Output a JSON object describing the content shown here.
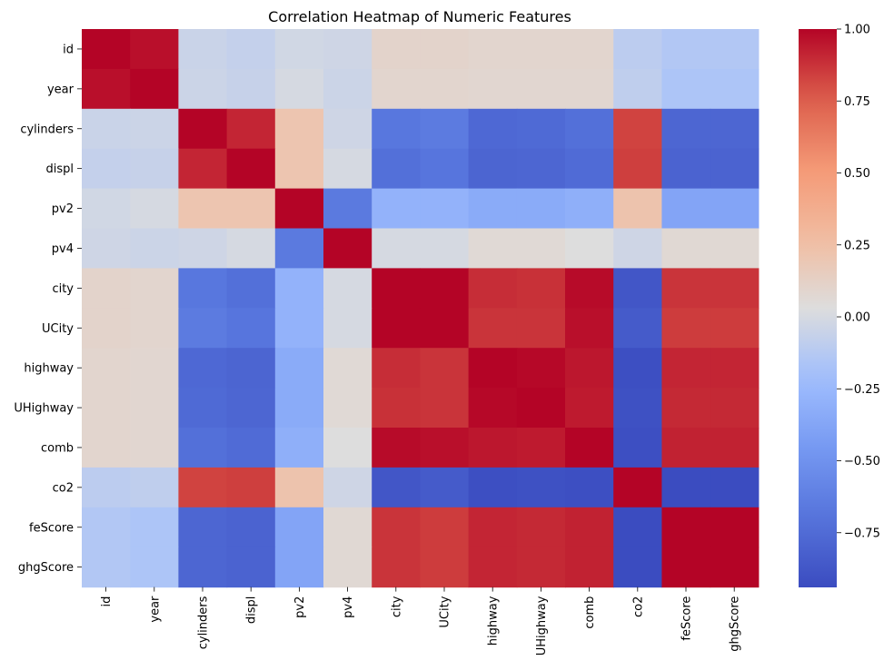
{
  "chart_data": {
    "type": "heatmap",
    "title": "Correlation Heatmap of Numeric Features",
    "xlabel": "",
    "ylabel": "",
    "labels": [
      "id",
      "year",
      "cylinders",
      "displ",
      "pv2",
      "pv4",
      "city",
      "UCity",
      "highway",
      "UHighway",
      "comb",
      "co2",
      "feScore",
      "ghgScore"
    ],
    "colormap": "coolwarm",
    "vmin": -0.94,
    "vmax": 1.0,
    "colorbar_ticks": [
      -0.75,
      -0.5,
      -0.25,
      0.0,
      0.25,
      0.5,
      0.75,
      1.0
    ],
    "colorbar_tick_labels": [
      "−0.75",
      "−0.50",
      "−0.25",
      "0.00",
      "0.25",
      "0.50",
      "0.75",
      "1.00"
    ],
    "matrix": [
      [
        1.0,
        0.97,
        -0.05,
        -0.07,
        -0.02,
        -0.03,
        0.1,
        0.1,
        0.09,
        0.09,
        0.09,
        -0.1,
        -0.14,
        -0.14
      ],
      [
        0.97,
        1.0,
        -0.04,
        -0.06,
        0.0,
        -0.04,
        0.09,
        0.09,
        0.08,
        0.08,
        0.08,
        -0.09,
        -0.16,
        -0.16
      ],
      [
        -0.05,
        -0.04,
        1.0,
        0.91,
        0.21,
        -0.03,
        -0.68,
        -0.65,
        -0.77,
        -0.76,
        -0.72,
        0.83,
        -0.78,
        -0.78
      ],
      [
        -0.07,
        -0.06,
        0.91,
        1.0,
        0.21,
        0.0,
        -0.72,
        -0.69,
        -0.79,
        -0.78,
        -0.75,
        0.84,
        -0.8,
        -0.8
      ],
      [
        -0.02,
        0.0,
        0.21,
        0.21,
        1.0,
        -0.66,
        -0.29,
        -0.29,
        -0.34,
        -0.34,
        -0.31,
        0.22,
        -0.38,
        -0.38
      ],
      [
        -0.03,
        -0.04,
        -0.03,
        0.0,
        -0.66,
        1.0,
        0.0,
        0.0,
        0.06,
        0.06,
        0.03,
        -0.03,
        0.07,
        0.07
      ],
      [
        0.1,
        0.09,
        -0.68,
        -0.72,
        -0.29,
        0.0,
        1.0,
        1.0,
        0.89,
        0.88,
        0.98,
        -0.88,
        0.87,
        0.87
      ],
      [
        0.1,
        0.09,
        -0.65,
        -0.69,
        -0.29,
        0.0,
        1.0,
        1.0,
        0.87,
        0.87,
        0.97,
        -0.85,
        0.85,
        0.85
      ],
      [
        0.09,
        0.08,
        -0.77,
        -0.79,
        -0.34,
        0.06,
        0.89,
        0.87,
        1.0,
        0.99,
        0.95,
        -0.92,
        0.91,
        0.91
      ],
      [
        0.09,
        0.08,
        -0.76,
        -0.78,
        -0.34,
        0.06,
        0.88,
        0.87,
        0.99,
        1.0,
        0.94,
        -0.91,
        0.9,
        0.9
      ],
      [
        0.09,
        0.08,
        -0.72,
        -0.75,
        -0.31,
        0.03,
        0.98,
        0.97,
        0.95,
        0.94,
        1.0,
        -0.92,
        0.92,
        0.92
      ],
      [
        -0.1,
        -0.09,
        0.83,
        0.84,
        0.22,
        -0.03,
        -0.88,
        -0.85,
        -0.92,
        -0.91,
        -0.92,
        1.0,
        -0.94,
        -0.94
      ],
      [
        -0.14,
        -0.16,
        -0.78,
        -0.8,
        -0.38,
        0.07,
        0.87,
        0.85,
        0.91,
        0.9,
        0.92,
        -0.94,
        1.0,
        1.0
      ],
      [
        -0.14,
        -0.16,
        -0.78,
        -0.8,
        -0.38,
        0.07,
        0.87,
        0.85,
        0.91,
        0.9,
        0.92,
        -0.94,
        1.0,
        1.0
      ]
    ]
  }
}
